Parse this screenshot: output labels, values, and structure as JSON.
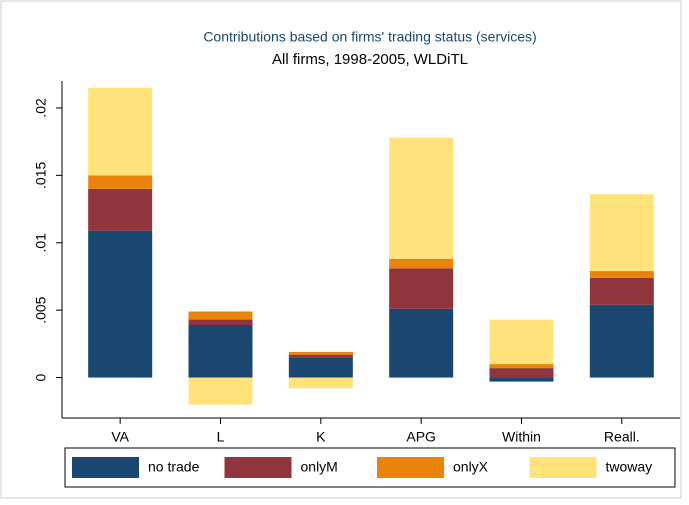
{
  "chart_data": {
    "type": "stacked_bar",
    "title": "Contributions based on firms' trading status (services)",
    "subtitle": "All firms, 1998-2005, WLDiTL",
    "categories": [
      "VA",
      "L",
      "K",
      "APG",
      "Within",
      "Reall."
    ],
    "series": [
      {
        "name": "no trade",
        "color": "#1a476f",
        "values": [
          0.0109,
          0.0039,
          0.0015,
          0.0051,
          -0.0003,
          0.0054
        ]
      },
      {
        "name": "onlyM",
        "color": "#90353b",
        "values": [
          0.0031,
          0.0004,
          0.0002,
          0.003,
          0.0007,
          0.002
        ]
      },
      {
        "name": "onlyX",
        "color": "#e8830c",
        "values": [
          0.001,
          0.0006,
          0.0002,
          0.0007,
          0.0003,
          0.0005
        ]
      },
      {
        "name": "twoway",
        "color": "#ffe27a",
        "values": [
          0.0065,
          -0.002,
          -0.0008,
          0.009,
          0.0033,
          0.0057
        ]
      }
    ],
    "ylim": [
      -0.003,
      0.022
    ],
    "yticks": [
      0,
      {
        "value": 0.005,
        "label": ".005"
      },
      {
        "value": 0.01,
        "label": ".01"
      },
      {
        "value": 0.015,
        "label": ".015"
      },
      {
        "value": 0.02,
        "label": ".02"
      }
    ]
  }
}
